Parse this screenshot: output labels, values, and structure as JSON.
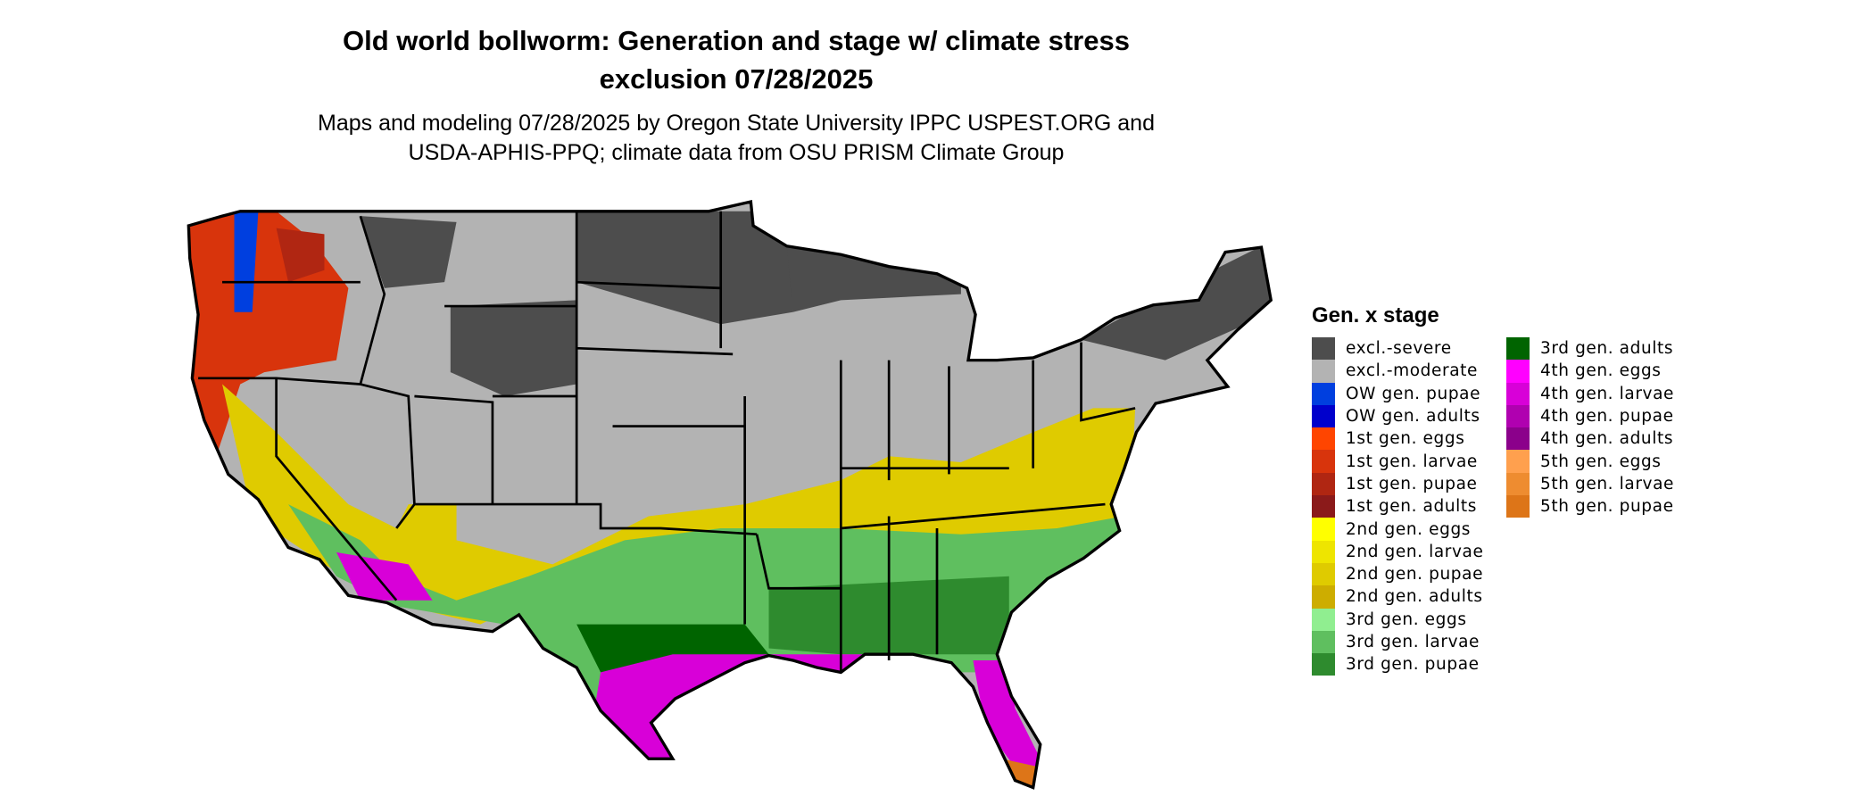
{
  "title_line1": "Old world bollworm: Generation and stage w/ climate stress",
  "title_line2": "exclusion 07/28/2025",
  "subtitle_line1": "Maps and modeling 07/28/2025 by Oregon State University IPPC USPEST.ORG and",
  "subtitle_line2": "USDA-APHIS-PPQ; climate data from OSU PRISM Climate Group",
  "legend": {
    "title": "Gen. x stage",
    "items": [
      {
        "label": "excl.-severe",
        "color": "#4d4d4d"
      },
      {
        "label": "excl.-moderate",
        "color": "#b3b3b3"
      },
      {
        "label": "OW gen. pupae",
        "color": "#003fdf"
      },
      {
        "label": "OW gen. adults",
        "color": "#0000cc"
      },
      {
        "label": "1st gen. eggs",
        "color": "#ff4500"
      },
      {
        "label": "1st gen. larvae",
        "color": "#d8340c"
      },
      {
        "label": "1st gen. pupae",
        "color": "#b02612"
      },
      {
        "label": "1st gen. adults",
        "color": "#8b1a1a"
      },
      {
        "label": "2nd gen. eggs",
        "color": "#ffff00"
      },
      {
        "label": "2nd gen. larvae",
        "color": "#eee500"
      },
      {
        "label": "2nd gen. pupae",
        "color": "#dfcb00"
      },
      {
        "label": "2nd gen. adults",
        "color": "#cdad00"
      },
      {
        "label": "3rd gen. eggs",
        "color": "#90ee90"
      },
      {
        "label": "3rd gen. larvae",
        "color": "#5fbf5f"
      },
      {
        "label": "3rd gen. pupae",
        "color": "#2e8b2e"
      },
      {
        "label": "3rd gen. adults",
        "color": "#006400"
      },
      {
        "label": "4th gen. eggs",
        "color": "#ff00ff"
      },
      {
        "label": "4th gen. larvae",
        "color": "#d800d8"
      },
      {
        "label": "4th gen. pupae",
        "color": "#b000b0"
      },
      {
        "label": "4th gen. adults",
        "color": "#8b008b"
      },
      {
        "label": "5th gen. eggs",
        "color": "#ffa04e"
      },
      {
        "label": "5th gen. larvae",
        "color": "#ee8c30"
      },
      {
        "label": "5th gen. pupae",
        "color": "#dd7518"
      }
    ]
  }
}
